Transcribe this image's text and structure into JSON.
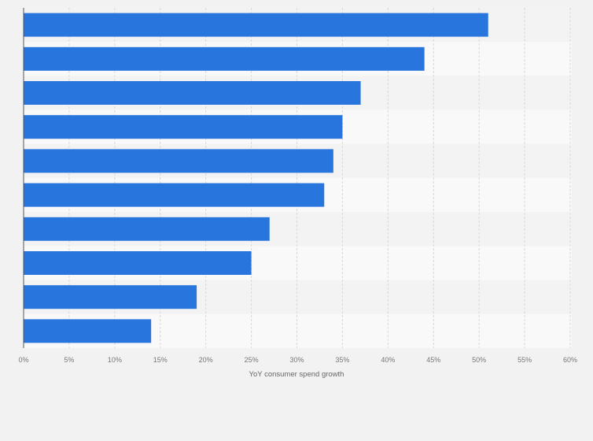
{
  "chart_data": {
    "type": "bar",
    "orientation": "horizontal",
    "values": [
      51,
      44,
      37,
      35,
      34,
      33,
      27,
      25,
      19,
      14
    ],
    "xlabel": "YoY consumer spend growth",
    "ylabel": "",
    "xlim": [
      0,
      60
    ],
    "xticks": [
      "0%",
      "5%",
      "10%",
      "15%",
      "20%",
      "25%",
      "30%",
      "35%",
      "40%",
      "45%",
      "50%",
      "55%",
      "60%"
    ],
    "grid": true,
    "bar_color": "#2876dd"
  }
}
